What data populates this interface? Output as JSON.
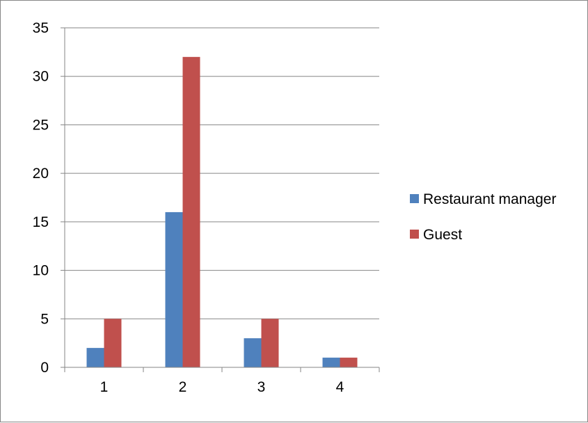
{
  "chart_data": {
    "type": "bar",
    "categories": [
      "1",
      "2",
      "3",
      "4"
    ],
    "series": [
      {
        "name": "Restaurant manager",
        "values": [
          2,
          16,
          3,
          1
        ],
        "color": "#4f81bd"
      },
      {
        "name": "Guest",
        "values": [
          5,
          32,
          5,
          1
        ],
        "color": "#c0504d"
      }
    ],
    "ylim": [
      0,
      35
    ],
    "yticks": [
      0,
      5,
      10,
      15,
      20,
      25,
      30,
      35
    ],
    "grid": true,
    "legend": "right",
    "title": "",
    "xlabel": "",
    "ylabel": ""
  }
}
